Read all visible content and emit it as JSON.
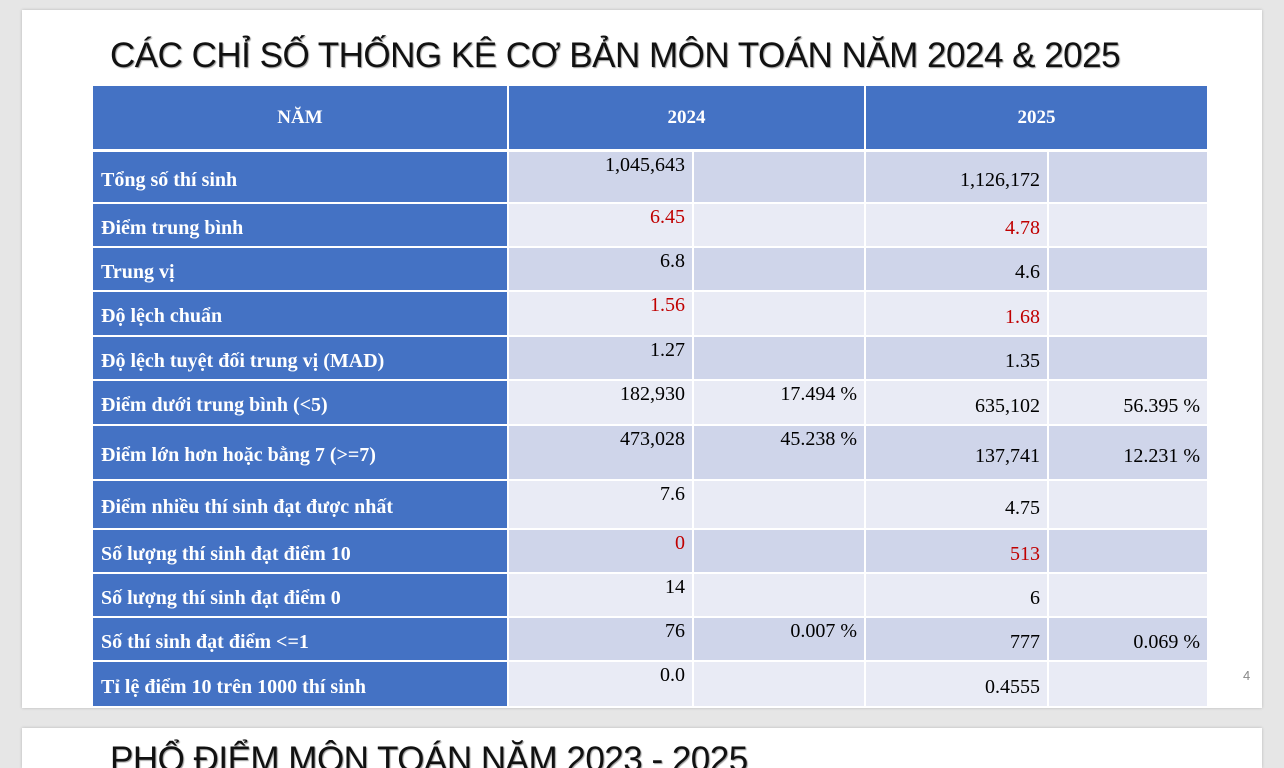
{
  "slide": {
    "title": "CÁC CHỈ SỐ THỐNG KÊ CƠ BẢN MÔN TOÁN NĂM 2024 & 2025",
    "page_number": "4"
  },
  "table": {
    "header": [
      "NĂM",
      "2024",
      "2025"
    ],
    "rows": [
      {
        "label": "Tổng số thí sinh",
        "v2024": "1,045,643",
        "v2025": "1,126,172"
      },
      {
        "label": "Điểm trung bình",
        "v2024": "6.45",
        "v2025": "4.78",
        "highlight": true
      },
      {
        "label": "Trung vị",
        "v2024": "6.8",
        "v2025": "4.6"
      },
      {
        "label": "Độ lệch chuẩn",
        "v2024": "1.56",
        "v2025": "1.68",
        "highlight": true
      },
      {
        "label": "Độ lệch tuyệt đối trung vị (MAD)",
        "v2024": "1.27",
        "v2025": "1.35"
      },
      {
        "label": "Điểm dưới trung bình (<5)",
        "v2024": "182,930",
        "p2024": "17.494 %",
        "v2025": "635,102",
        "p2025": "56.395 %"
      },
      {
        "label": "Điểm lớn hơn hoặc bằng 7 (>=7)",
        "v2024": "473,028",
        "p2024": "45.238 %",
        "v2025": "137,741",
        "p2025": "12.231 %"
      },
      {
        "label": "Điểm nhiều thí sinh đạt được nhất",
        "v2024": "7.6",
        "v2025": "4.75"
      },
      {
        "label": "Số lượng thí sinh đạt điểm 10",
        "v2024": "0",
        "v2025": "513",
        "highlight": true
      },
      {
        "label": "Số lượng thí sinh đạt điểm 0",
        "v2024": "14",
        "v2025": "6"
      },
      {
        "label": "Số thí sinh đạt điểm <=1",
        "v2024": "76",
        "p2024": "0.007 %",
        "v2025": "777",
        "p2025": "0.069 %"
      },
      {
        "label": "Tỉ lệ điểm 10 trên 1000 thí sinh",
        "v2024": "0.0",
        "v2025": "0.4555"
      }
    ]
  },
  "next_slide": {
    "title": "PHỔ ĐIỂM MÔN TOÁN NĂM 2023 - 2025"
  }
}
